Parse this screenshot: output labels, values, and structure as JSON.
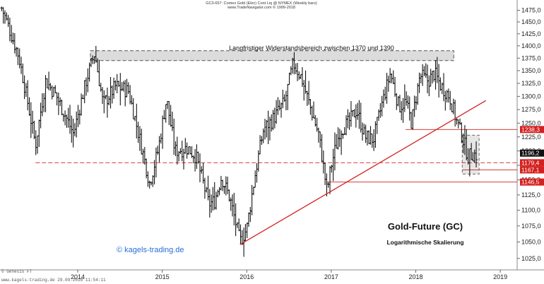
{
  "header": {
    "line1": "GC3-657: Comex Gold (Elec) Cont Liq @ NYMEX (Weekly bars)",
    "line2": "www.TradeNavigator.com © 1999-2018"
  },
  "chart_data": {
    "type": "bar",
    "bar_style": "OHLC weekly",
    "scale": "log",
    "ylim": [
      1010,
      1485
    ],
    "y_ticks": [
      1025,
      1050,
      1075,
      1100,
      1125,
      1150,
      1175,
      1200,
      1225,
      1250,
      1275,
      1300,
      1325,
      1350,
      1375,
      1400,
      1425,
      1450,
      1475
    ],
    "y_tick_labels": [
      "1025,0",
      "1050,0",
      "1075,0",
      "1100,0",
      "1125,0",
      "1150,0",
      "1175,0",
      "1200,0",
      "1225,0",
      "1250,0",
      "1275,0",
      "1300,0",
      "1325,0",
      "1350,0",
      "1375,0",
      "1400,0",
      "1425,0",
      "1450,0",
      "1475,0"
    ],
    "xlim": [
      2013.08,
      2019.2
    ],
    "x_ticks": [
      2014,
      2015,
      2016,
      2017,
      2018,
      2019
    ],
    "x_tick_labels": [
      "2014",
      "2015",
      "2016",
      "2017",
      "2018",
      "2019"
    ],
    "grid": false,
    "colors": {
      "bars": "#111111",
      "trendline": "#d42020",
      "level": "#d42020",
      "level_label_bg": "#d42020",
      "zone_fill": "#dcdcdc"
    },
    "anchors": [
      [
        2013.1,
        1480
      ],
      [
        2013.3,
        1380
      ],
      [
        2013.5,
        1210
      ],
      [
        2013.62,
        1330
      ],
      [
        2013.75,
        1300
      ],
      [
        2013.95,
        1230
      ],
      [
        2014.1,
        1330
      ],
      [
        2014.2,
        1385
      ],
      [
        2014.3,
        1285
      ],
      [
        2014.45,
        1320
      ],
      [
        2014.6,
        1310
      ],
      [
        2014.75,
        1210
      ],
      [
        2014.85,
        1145
      ],
      [
        2014.95,
        1200
      ],
      [
        2015.05,
        1295
      ],
      [
        2015.15,
        1200
      ],
      [
        2015.3,
        1205
      ],
      [
        2015.4,
        1190
      ],
      [
        2015.55,
        1110
      ],
      [
        2015.62,
        1115
      ],
      [
        2015.7,
        1155
      ],
      [
        2015.8,
        1120
      ],
      [
        2015.92,
        1050
      ],
      [
        2016.0,
        1070
      ],
      [
        2016.1,
        1160
      ],
      [
        2016.2,
        1240
      ],
      [
        2016.3,
        1255
      ],
      [
        2016.45,
        1290
      ],
      [
        2016.55,
        1365
      ],
      [
        2016.65,
        1335
      ],
      [
        2016.75,
        1280
      ],
      [
        2016.85,
        1230
      ],
      [
        2016.95,
        1130
      ],
      [
        2017.0,
        1175
      ],
      [
        2017.1,
        1235
      ],
      [
        2017.2,
        1250
      ],
      [
        2017.3,
        1275
      ],
      [
        2017.4,
        1225
      ],
      [
        2017.5,
        1220
      ],
      [
        2017.6,
        1285
      ],
      [
        2017.7,
        1345
      ],
      [
        2017.8,
        1280
      ],
      [
        2017.88,
        1290
      ],
      [
        2017.95,
        1250
      ],
      [
        2018.05,
        1340
      ],
      [
        2018.15,
        1330
      ],
      [
        2018.22,
        1345
      ],
      [
        2018.3,
        1320
      ],
      [
        2018.4,
        1300
      ],
      [
        2018.48,
        1255
      ],
      [
        2018.55,
        1225
      ],
      [
        2018.62,
        1190
      ],
      [
        2018.68,
        1195
      ],
      [
        2018.73,
        1192
      ]
    ],
    "resistance_zone": {
      "y_low": 1370,
      "y_high": 1390,
      "x_start": 2014.15,
      "x_end": 2018.45,
      "label": "Langfristiger Widerstandsbereich zwischen 1370 und 1390"
    },
    "trendline": {
      "points": [
        [
          2015.92,
          1046
        ],
        [
          2018.83,
          1292
        ]
      ]
    },
    "levels": [
      {
        "value": 1238.3,
        "label": "1238,3",
        "x_start": 2017.88,
        "style": "solid"
      },
      {
        "value": 1179.4,
        "label": "1179,4",
        "x_start": 2013.5,
        "style": "dashed"
      },
      {
        "value": 1167.1,
        "label": "1167,1",
        "x_start": 2018.55,
        "style": "solid"
      },
      {
        "value": 1146.5,
        "label": "1146,5",
        "x_start": 2016.95,
        "style": "solid"
      }
    ],
    "consolidation_box": {
      "y_low": 1160,
      "y_high": 1228,
      "x_start": 2018.55,
      "x_end": 2018.75
    },
    "last_price": {
      "value": 1196.2,
      "label": "1196,2"
    }
  },
  "annotations": {
    "title": "Gold-Future (GC)",
    "subtitle": "Logarithmische Skalierung",
    "brand": "© kagels-trading.de",
    "corner_left": "© Genesis FT",
    "footer": "www.kagels-trading.de   29.09.2018 11:54:11"
  }
}
